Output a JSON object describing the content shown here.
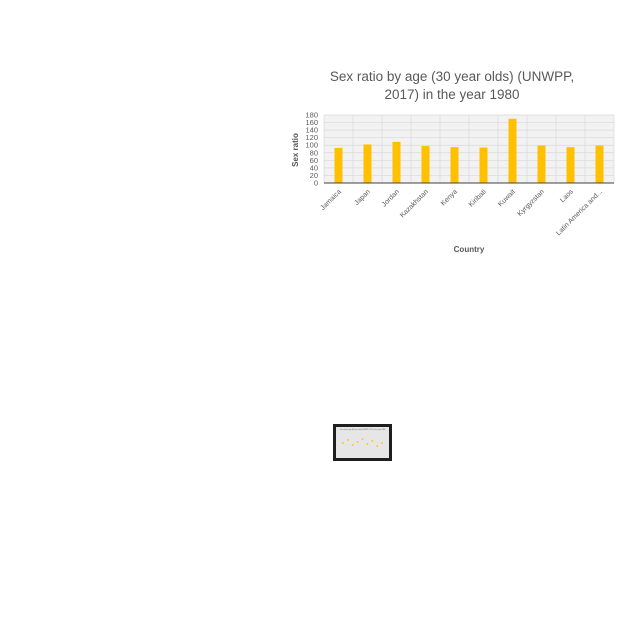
{
  "chart_data": [
    {
      "type": "bar",
      "title": "Sex ratio by age (30 year olds) (UNWPP, 2017) in the year 1980",
      "title_lines": [
        "Sex ratio by age (30 year olds) (UNWPP,",
        "2017) in the year 1980"
      ],
      "xlabel": "Country",
      "ylabel": "Sex ratio",
      "categories": [
        "Jamaica",
        "Japan",
        "Jordan",
        "Kazakhstan",
        "Kenya",
        "Kiribati",
        "Kuwait",
        "Kyrgyzstan",
        "Laos",
        "Latin America and..."
      ],
      "values": [
        93,
        102,
        109,
        98,
        95,
        94,
        170,
        99,
        95,
        99
      ],
      "ylim": [
        0,
        180
      ],
      "yticks": [
        0,
        20,
        40,
        60,
        80,
        100,
        120,
        140,
        160,
        180
      ],
      "grid": true,
      "legend": "none",
      "colors": {
        "bar": "#ffc000",
        "grid": "#d9d9d9",
        "plot_bg": "#f2f2f2",
        "text": "#595959"
      }
    }
  ],
  "thumbnail": {
    "title_lines": [
      "Sex ratio by age (30 year olds) (UNWPP, 2017) in the year 1980"
    ],
    "colors": {
      "frame": "#1e1e1e",
      "panel": "#e7e6e6",
      "points": "#ffc000"
    }
  }
}
